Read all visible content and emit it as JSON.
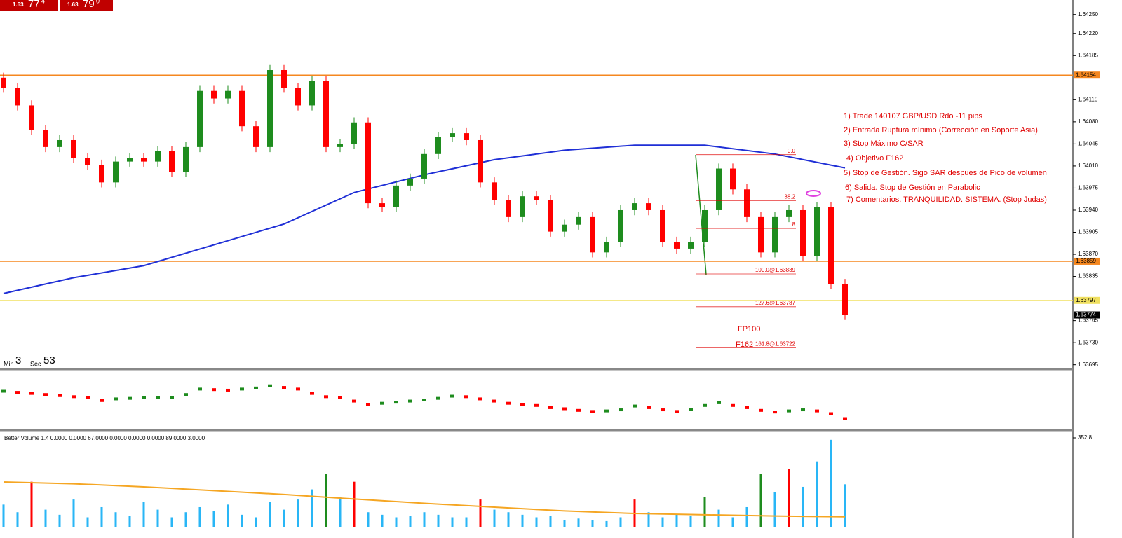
{
  "chart_data": {
    "type": "candlestick",
    "quote_buttons": [
      {
        "prefix": "1.63",
        "big": "77",
        "small": "4"
      },
      {
        "prefix": "1.63",
        "big": "79",
        "small": "0"
      }
    ],
    "timer": {
      "min_label": "Min",
      "min": "3",
      "sec_label": "Sec",
      "sec": "53"
    },
    "ylim": [
      1.63688,
      1.64273
    ],
    "yticks": [
      {
        "value": 1.6425,
        "label": "1.64250"
      },
      {
        "value": 1.6422,
        "label": "1.64220"
      },
      1.64185,
      1.64115,
      {
        "value": 1.6408,
        "label": "1.64080"
      },
      1.64045,
      {
        "value": 1.6401,
        "label": "1.64010"
      },
      1.63975,
      {
        "value": 1.6394,
        "label": "1.63940"
      },
      1.63905,
      {
        "value": 1.6387,
        "label": "1.63870"
      },
      1.63835,
      1.63765,
      {
        "value": 1.6373,
        "label": "1.63730"
      },
      1.63695
    ],
    "open": [
      1.6415,
      1.64134,
      1.64106,
      1.64067,
      1.6404,
      1.64051,
      1.64023,
      1.64012,
      1.63984,
      1.64017,
      1.64023,
      1.64017,
      1.64034,
      1.64001,
      1.6404,
      1.64129,
      1.64117,
      1.64129,
      1.64073,
      1.6404,
      1.64162,
      1.64134,
      1.64106,
      1.64145,
      1.6404,
      1.64045,
      1.64079,
      1.63951,
      1.63945,
      1.63979,
      1.6399,
      1.64029,
      1.64056,
      1.64062,
      1.64051,
      1.63984,
      1.63956,
      1.63929,
      1.63962,
      1.63956,
      1.63906,
      1.63917,
      1.63929,
      1.63873,
      1.6389,
      1.6394,
      1.63951,
      1.6394,
      1.6389,
      1.63879,
      1.6389,
      1.6394,
      1.64006,
      1.63973,
      1.63929,
      1.63873,
      1.63929,
      1.6394,
      1.63867,
      1.63945,
      1.63823
    ],
    "high": [
      1.64158,
      1.64142,
      1.64114,
      1.64075,
      1.64059,
      1.64059,
      1.64031,
      1.6402,
      1.64025,
      1.64031,
      1.64031,
      1.64042,
      1.64042,
      1.64048,
      1.64137,
      1.64137,
      1.64137,
      1.64137,
      1.64081,
      1.6417,
      1.6417,
      1.64142,
      1.64153,
      1.64153,
      1.64053,
      1.64087,
      1.64087,
      1.63959,
      1.63987,
      1.63998,
      1.64037,
      1.64064,
      1.6407,
      1.6407,
      1.64059,
      1.63992,
      1.63964,
      1.6397,
      1.6397,
      1.63964,
      1.63925,
      1.63937,
      1.63937,
      1.63898,
      1.63948,
      1.63959,
      1.63959,
      1.63948,
      1.63898,
      1.63898,
      1.63948,
      1.64014,
      1.64014,
      1.63981,
      1.63937,
      1.63937,
      1.63948,
      1.63948,
      1.63953,
      1.63953,
      1.63831
    ],
    "low": [
      1.64126,
      1.64098,
      1.64059,
      1.64032,
      1.64032,
      1.64015,
      1.64004,
      1.63976,
      1.63976,
      1.64009,
      1.64009,
      1.64009,
      1.63993,
      1.63993,
      1.64032,
      1.64109,
      1.64109,
      1.64065,
      1.64032,
      1.64032,
      1.64126,
      1.64098,
      1.64098,
      1.64032,
      1.64032,
      1.64037,
      1.63943,
      1.63937,
      1.63937,
      1.63971,
      1.63982,
      1.64021,
      1.64048,
      1.64043,
      1.63976,
      1.63948,
      1.63921,
      1.63921,
      1.63948,
      1.63898,
      1.63898,
      1.63909,
      1.63865,
      1.63865,
      1.63882,
      1.63932,
      1.63932,
      1.63882,
      1.63871,
      1.63871,
      1.63882,
      1.63932,
      1.63965,
      1.63921,
      1.63865,
      1.63865,
      1.63921,
      1.63859,
      1.63859,
      1.63815,
      1.63766
    ],
    "close": [
      1.64134,
      1.64106,
      1.64067,
      1.6404,
      1.64051,
      1.64023,
      1.64012,
      1.63984,
      1.64017,
      1.64023,
      1.64017,
      1.64034,
      1.64001,
      1.6404,
      1.64129,
      1.64117,
      1.64129,
      1.64073,
      1.6404,
      1.64162,
      1.64134,
      1.64106,
      1.64145,
      1.6404,
      1.64045,
      1.64079,
      1.63951,
      1.63945,
      1.63979,
      1.6399,
      1.64029,
      1.64056,
      1.64062,
      1.64051,
      1.63984,
      1.63956,
      1.63929,
      1.63962,
      1.63956,
      1.63906,
      1.63917,
      1.63929,
      1.63873,
      1.6389,
      1.6394,
      1.63951,
      1.6394,
      1.6389,
      1.63879,
      1.6389,
      1.6394,
      1.64006,
      1.63973,
      1.63929,
      1.63873,
      1.63929,
      1.6394,
      1.63867,
      1.63945,
      1.63823,
      1.63774
    ],
    "up_color": "#1e8c1e",
    "down_color": "#ff0000",
    "ma": {
      "color": "#1f2fd6",
      "values": [
        1.63808,
        1.63833,
        1.63852,
        1.63885,
        1.63918,
        1.63968,
        1.63996,
        1.6402,
        1.64035,
        1.64043,
        1.64043,
        1.64029,
        1.64007
      ]
    },
    "levels": [
      {
        "price": 1.64154,
        "color": "#f5871f"
      },
      {
        "price": 1.63859,
        "color": "#f5871f"
      },
      {
        "price": 1.63797,
        "color": "#f0e060"
      },
      {
        "price": 1.63774,
        "color": "#8a8f99"
      }
    ],
    "fib": [
      {
        "label": "0.0",
        "price": 1.64028
      },
      {
        "label": "38.2",
        "price": 1.63955
      },
      {
        "label": "8",
        "price": 1.63911
      },
      {
        "label": "100.0@1.63839",
        "price": 1.63839
      },
      {
        "label": "127.6@1.63787",
        "price": 1.63787
      },
      {
        "label": "161.8@1.63722",
        "price": 1.63722
      }
    ],
    "fib_notes": [
      "FP100",
      "F162"
    ],
    "notes": [
      "1) Trade 140107 GBP/USD Rdo -11 pips",
      "2) Entrada Ruptura mínimo (Corrección en Soporte Asia)",
      "3) Stop Máximo C/SAR",
      "4) Objetivo F162",
      "5) Stop de Gestión. Sigo SAR después de Pico de volumen",
      "6) Salida. Stop de Gestión en Parabolic",
      "7) Comentarios. TRANQUILIDAD. SISTEMA. (Stop Judas)"
    ],
    "oscillator": {
      "ylim": [
        0,
        100
      ],
      "values": [
        66,
        64,
        62,
        60,
        58,
        56,
        54,
        49,
        52,
        53,
        54,
        54,
        55,
        60,
        70,
        69,
        68,
        70,
        72,
        76,
        73,
        70,
        62,
        56,
        54,
        48,
        42,
        44,
        46,
        48,
        50,
        53,
        57,
        56,
        52,
        48,
        44,
        42,
        40,
        36,
        34,
        31,
        29,
        30,
        32,
        39,
        36,
        32,
        29,
        33,
        40,
        45,
        40,
        36,
        31,
        28,
        30,
        32,
        30,
        25,
        16
      ]
    },
    "volume": {
      "title": "Better Volume 1.4 0.0000 0.0000 67.0000 0.0000 0.0000 0.0000 89.0000 3.0000",
      "ylim": [
        0,
        352.8
      ],
      "yticks": [
        352.8
      ],
      "values": [
        90,
        60,
        180,
        70,
        50,
        110,
        40,
        80,
        60,
        45,
        100,
        70,
        40,
        60,
        80,
        65,
        90,
        50,
        40,
        100,
        70,
        110,
        150,
        210,
        120,
        180,
        60,
        50,
        40,
        45,
        60,
        50,
        40,
        40,
        110,
        70,
        60,
        50,
        40,
        45,
        30,
        35,
        30,
        25,
        40,
        110,
        60,
        40,
        50,
        45,
        120,
        70,
        40,
        80,
        210,
        140,
        230,
        160,
        260,
        345,
        170
      ],
      "colors": [
        "#29b6f6",
        "#29b6f6",
        "#ff0000",
        "#29b6f6",
        "#29b6f6",
        "#29b6f6",
        "#29b6f6",
        "#29b6f6",
        "#29b6f6",
        "#29b6f6",
        "#29b6f6",
        "#29b6f6",
        "#29b6f6",
        "#29b6f6",
        "#29b6f6",
        "#29b6f6",
        "#29b6f6",
        "#29b6f6",
        "#29b6f6",
        "#29b6f6",
        "#29b6f6",
        "#29b6f6",
        "#29b6f6",
        "#1e8c1e",
        "#29b6f6",
        "#ff0000",
        "#29b6f6",
        "#29b6f6",
        "#29b6f6",
        "#29b6f6",
        "#29b6f6",
        "#29b6f6",
        "#29b6f6",
        "#29b6f6",
        "#ff0000",
        "#29b6f6",
        "#29b6f6",
        "#29b6f6",
        "#29b6f6",
        "#29b6f6",
        "#29b6f6",
        "#29b6f6",
        "#29b6f6",
        "#29b6f6",
        "#29b6f6",
        "#ff0000",
        "#29b6f6",
        "#29b6f6",
        "#29b6f6",
        "#29b6f6",
        "#1e8c1e",
        "#29b6f6",
        "#29b6f6",
        "#29b6f6",
        "#1e8c1e",
        "#29b6f6",
        "#ff0000",
        "#29b6f6",
        "#29b6f6",
        "#29b6f6",
        "#29b6f6"
      ],
      "ma": {
        "color": "#f5a623",
        "values": [
          179,
          172,
          160,
          145,
          130,
          112,
          95,
          80,
          65,
          55,
          50,
          45,
          42
        ]
      }
    }
  }
}
